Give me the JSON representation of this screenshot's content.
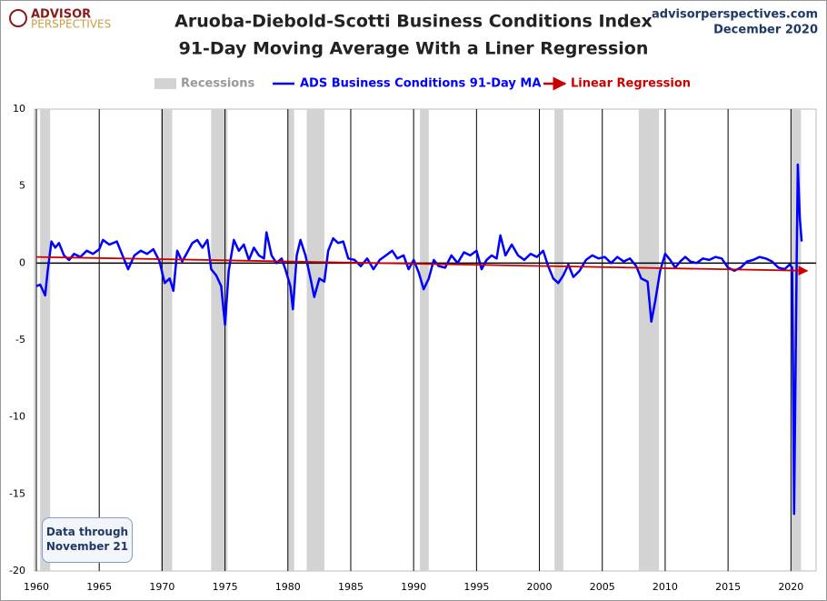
{
  "chart_data": {
    "type": "line",
    "title": "Aruoba-Diebold-Scotti Business Conditions Index",
    "subtitle": "91-Day Moving Average With a Liner Regression",
    "logo": {
      "top": "ADVISOR",
      "bottom": "PERSPECTIVES"
    },
    "source": "advisorperspectives.com",
    "date": "December 2020",
    "annotation": "Data through November 21",
    "xlim": [
      1960,
      2022
    ],
    "ylim": [
      -20,
      10
    ],
    "xticks": [
      1960,
      1965,
      1970,
      1975,
      1980,
      1985,
      1990,
      1995,
      2000,
      2005,
      2010,
      2015,
      2020
    ],
    "yticks": [
      -20,
      -15,
      -10,
      -5,
      0,
      5,
      10
    ],
    "vertical_grid": true,
    "recessions": {
      "name": "Recessions",
      "color": "#d3d3d3",
      "periods": [
        [
          1960.3,
          1961.1
        ],
        [
          1969.9,
          1970.8
        ],
        [
          1973.9,
          1975.2
        ],
        [
          1980.0,
          1980.5
        ],
        [
          1981.5,
          1982.9
        ],
        [
          1990.5,
          1991.2
        ],
        [
          2001.2,
          2001.9
        ],
        [
          2007.9,
          2009.5
        ],
        [
          2020.0,
          2020.8
        ]
      ]
    },
    "series": [
      {
        "name": "ADS Business Conditions 91-Day MA",
        "color": "#0000ff",
        "x": [
          1960.0,
          1960.3,
          1960.7,
          1960.9,
          1961.2,
          1961.5,
          1961.8,
          1962.2,
          1962.6,
          1963.0,
          1963.5,
          1964.0,
          1964.5,
          1965.0,
          1965.3,
          1965.8,
          1966.4,
          1966.8,
          1967.3,
          1967.8,
          1968.3,
          1968.8,
          1969.3,
          1969.8,
          1970.2,
          1970.6,
          1970.9,
          1971.2,
          1971.6,
          1972.0,
          1972.4,
          1972.8,
          1973.2,
          1973.6,
          1973.9,
          1974.3,
          1974.7,
          1975.0,
          1975.3,
          1975.7,
          1976.1,
          1976.5,
          1976.9,
          1977.3,
          1977.7,
          1978.1,
          1978.3,
          1978.7,
          1979.1,
          1979.5,
          1979.8,
          1980.2,
          1980.4,
          1980.7,
          1981.0,
          1981.4,
          1981.8,
          1982.1,
          1982.5,
          1982.9,
          1983.2,
          1983.6,
          1984.0,
          1984.4,
          1984.8,
          1985.3,
          1985.8,
          1986.3,
          1986.8,
          1987.3,
          1987.8,
          1988.3,
          1988.7,
          1989.2,
          1989.6,
          1990.0,
          1990.4,
          1990.8,
          1991.2,
          1991.6,
          1992.0,
          1992.5,
          1993.0,
          1993.5,
          1994.0,
          1994.5,
          1995.0,
          1995.4,
          1995.8,
          1996.2,
          1996.6,
          1996.9,
          1997.3,
          1997.8,
          1998.3,
          1998.8,
          1999.3,
          1999.8,
          2000.3,
          2000.7,
          2001.1,
          2001.5,
          2001.9,
          2002.3,
          2002.7,
          2003.2,
          2003.7,
          2004.2,
          2004.7,
          2005.2,
          2005.7,
          2006.2,
          2006.7,
          2007.2,
          2007.7,
          2008.1,
          2008.6,
          2008.9,
          2009.2,
          2009.6,
          2010.0,
          2010.4,
          2010.8,
          2011.2,
          2011.6,
          2012.0,
          2012.5,
          2013.0,
          2013.5,
          2014.0,
          2014.5,
          2015.0,
          2015.5,
          2016.0,
          2016.5,
          2017.0,
          2017.5,
          2018.0,
          2018.5,
          2019.0,
          2019.5,
          2019.9,
          2020.1,
          2020.25,
          2020.45,
          2020.55,
          2020.7,
          2020.85
        ],
        "values": [
          -1.5,
          -1.4,
          -2.1,
          -0.5,
          1.4,
          1.0,
          1.3,
          0.5,
          0.2,
          0.6,
          0.4,
          0.8,
          0.6,
          0.9,
          1.5,
          1.2,
          1.4,
          0.6,
          -0.4,
          0.5,
          0.8,
          0.6,
          0.9,
          0.1,
          -1.3,
          -1.0,
          -1.8,
          0.8,
          0.1,
          0.7,
          1.3,
          1.5,
          1.0,
          1.5,
          -0.4,
          -0.8,
          -1.5,
          -4.0,
          -0.5,
          1.5,
          0.8,
          1.2,
          0.2,
          1.0,
          0.5,
          0.3,
          2.0,
          0.5,
          0.0,
          0.3,
          -0.4,
          -1.5,
          -3.0,
          0.5,
          1.5,
          0.5,
          -1.0,
          -2.2,
          -1.0,
          -1.2,
          0.8,
          1.6,
          1.3,
          1.4,
          0.3,
          0.2,
          -0.2,
          0.3,
          -0.4,
          0.2,
          0.5,
          0.8,
          0.3,
          0.5,
          -0.4,
          0.2,
          -0.6,
          -1.7,
          -1.0,
          0.2,
          -0.2,
          -0.3,
          0.5,
          0.0,
          0.7,
          0.5,
          0.8,
          -0.4,
          0.2,
          0.5,
          0.3,
          1.8,
          0.5,
          1.2,
          0.5,
          0.2,
          0.6,
          0.4,
          0.8,
          -0.2,
          -1.0,
          -1.3,
          -0.8,
          -0.1,
          -0.9,
          -0.5,
          0.2,
          0.5,
          0.3,
          0.4,
          0.0,
          0.4,
          0.1,
          0.3,
          -0.2,
          -1.0,
          -1.2,
          -3.8,
          -2.5,
          -0.5,
          0.6,
          0.2,
          -0.3,
          0.1,
          0.4,
          0.1,
          0.0,
          0.3,
          0.2,
          0.4,
          0.3,
          -0.3,
          -0.5,
          -0.3,
          0.1,
          0.2,
          0.4,
          0.3,
          0.1,
          -0.3,
          -0.4,
          -0.1,
          -0.3,
          -16.3,
          0.0,
          6.4,
          3.0,
          1.4
        ]
      },
      {
        "name": "Linear Regression",
        "color": "#cc0000",
        "arrow": true,
        "x": [
          1960,
          2021.3
        ],
        "values": [
          0.4,
          -0.5
        ]
      }
    ]
  }
}
